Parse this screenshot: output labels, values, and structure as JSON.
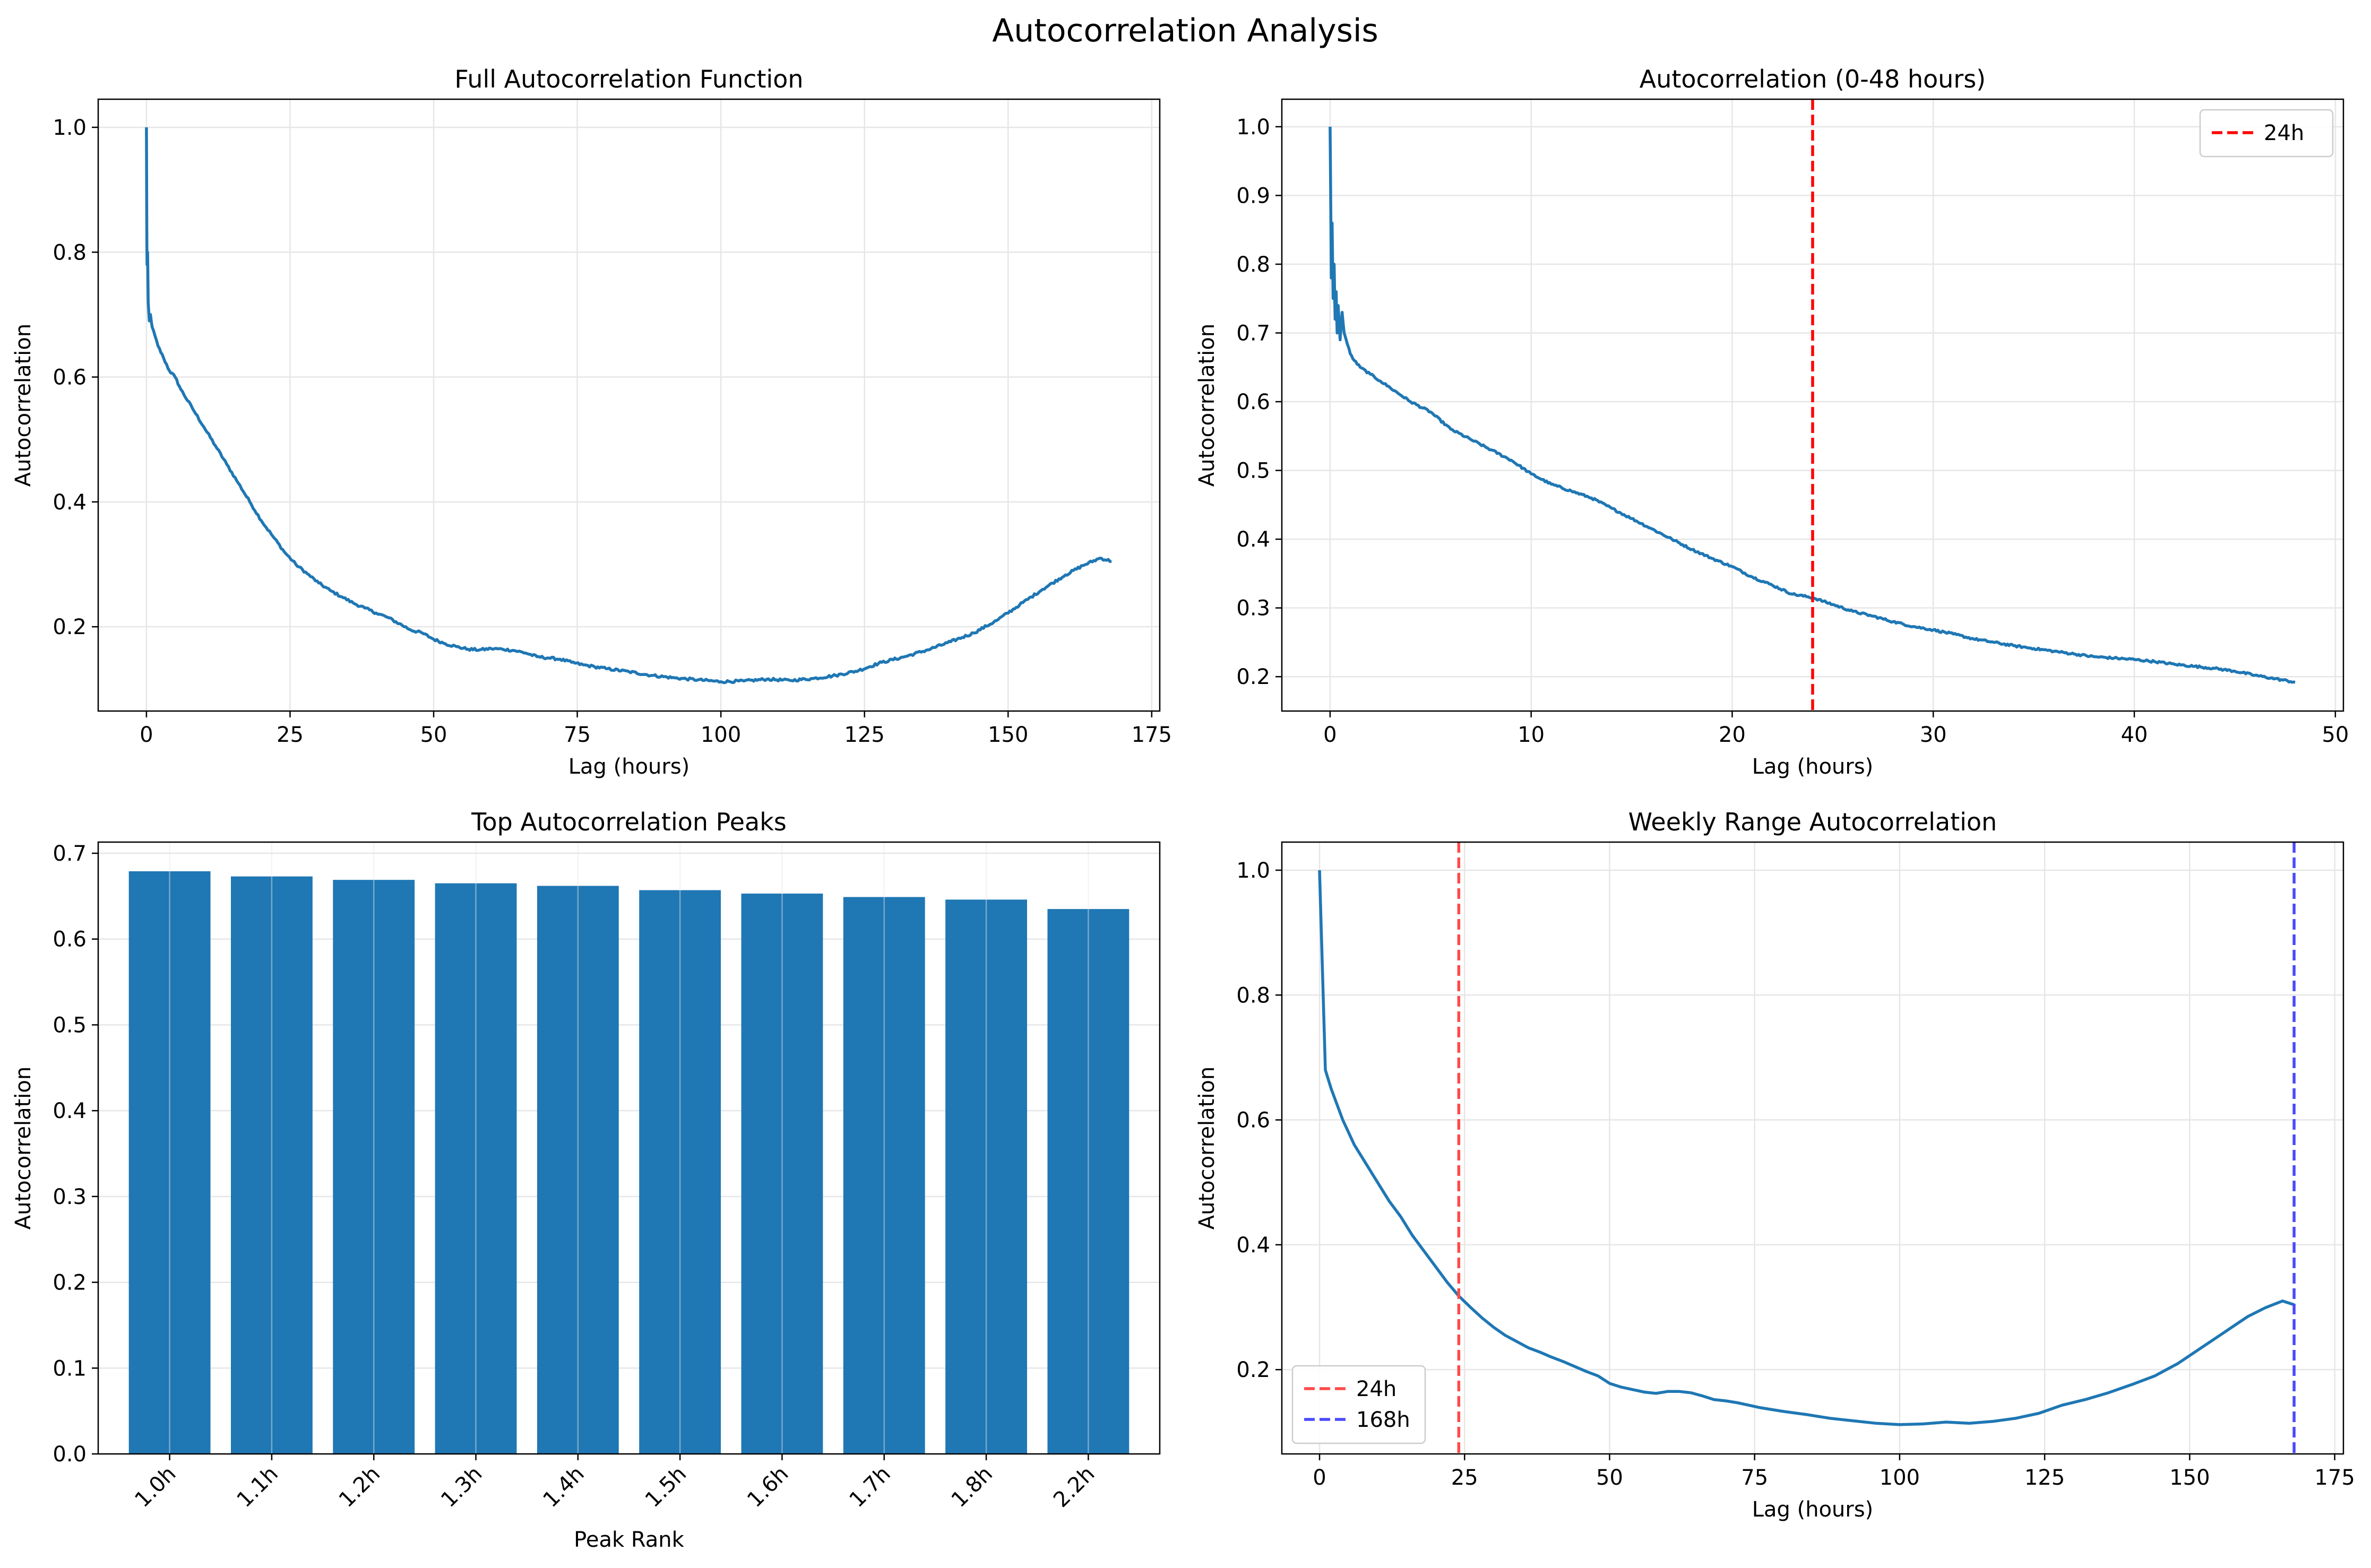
{
  "figure_title": "Autocorrelation Analysis",
  "colors": {
    "line": "#1f77b4",
    "bar": "#1f77b4",
    "marker_24h": "#ff0000",
    "marker_24h_faded": "#ff4a4a",
    "marker_168h": "#4a4aff",
    "grid": "#e6e6e6",
    "axis": "#000000"
  },
  "chart_data": [
    {
      "id": "full",
      "type": "line",
      "title": "Full Autocorrelation Function",
      "xlabel": "Lag (hours)",
      "ylabel": "Autocorrelation",
      "xlim": [
        -8.4,
        176.4
      ],
      "ylim": [
        0.065,
        1.045
      ],
      "xticks": [
        0,
        25,
        50,
        75,
        100,
        125,
        150,
        175
      ],
      "yticks": [
        0.2,
        0.4,
        0.6,
        0.8,
        1.0
      ],
      "ytick_labels": [
        "0.2",
        "0.4",
        "0.6",
        "0.8",
        "1.0"
      ],
      "grid": true,
      "noise": 0.004,
      "series": [
        {
          "x": [
            0,
            0.05,
            0.1,
            0.2,
            0.3,
            0.5,
            0.7,
            1,
            2,
            3,
            4,
            5,
            6,
            8,
            10,
            12,
            14,
            16,
            18,
            20,
            22,
            24,
            26,
            28,
            30,
            32,
            34,
            36,
            38,
            40,
            42,
            44,
            46,
            48,
            50,
            52,
            54,
            56,
            58,
            60,
            62,
            64,
            66,
            68,
            70,
            72,
            74,
            76,
            78,
            80,
            84,
            88,
            92,
            96,
            100,
            104,
            108,
            112,
            116,
            120,
            124,
            128,
            132,
            136,
            140,
            144,
            148,
            152,
            156,
            160,
            163,
            166,
            168
          ],
          "y": [
            1.0,
            0.85,
            0.78,
            0.8,
            0.72,
            0.69,
            0.7,
            0.68,
            0.65,
            0.63,
            0.61,
            0.6,
            0.58,
            0.55,
            0.52,
            0.49,
            0.46,
            0.43,
            0.4,
            0.37,
            0.345,
            0.32,
            0.3,
            0.285,
            0.27,
            0.258,
            0.248,
            0.238,
            0.23,
            0.222,
            0.215,
            0.205,
            0.195,
            0.19,
            0.18,
            0.173,
            0.168,
            0.164,
            0.163,
            0.165,
            0.164,
            0.162,
            0.158,
            0.152,
            0.15,
            0.148,
            0.143,
            0.139,
            0.136,
            0.133,
            0.128,
            0.122,
            0.118,
            0.115,
            0.112,
            0.113,
            0.116,
            0.114,
            0.117,
            0.122,
            0.13,
            0.143,
            0.152,
            0.163,
            0.176,
            0.19,
            0.21,
            0.235,
            0.26,
            0.283,
            0.298,
            0.31,
            0.305
          ]
        }
      ],
      "vlines": [],
      "legend": null
    },
    {
      "id": "short",
      "type": "line",
      "title": "Autocorrelation (0-48 hours)",
      "xlabel": "Lag (hours)",
      "ylabel": "Autocorrelation",
      "xlim": [
        -2.4,
        50.4
      ],
      "ylim": [
        0.15,
        1.04
      ],
      "xticks": [
        0,
        10,
        20,
        30,
        40,
        50
      ],
      "yticks": [
        0.2,
        0.3,
        0.4,
        0.5,
        0.6,
        0.7,
        0.8,
        0.9,
        1.0
      ],
      "ytick_labels": [
        "0.2",
        "0.3",
        "0.4",
        "0.5",
        "0.6",
        "0.7",
        "0.8",
        "0.9",
        "1.0"
      ],
      "grid": true,
      "noise": 0.003,
      "series": [
        {
          "x": [
            0,
            0.03,
            0.06,
            0.1,
            0.15,
            0.2,
            0.25,
            0.3,
            0.35,
            0.4,
            0.5,
            0.6,
            0.7,
            0.8,
            1.0,
            1.2,
            1.5,
            2,
            2.5,
            3,
            4,
            5,
            6,
            7,
            8,
            9,
            10,
            11,
            12,
            13,
            14,
            15,
            16,
            17,
            18,
            19,
            20,
            21,
            22,
            23,
            24,
            25,
            26,
            27,
            28,
            29,
            30,
            31,
            32,
            33,
            34,
            35,
            36,
            37,
            38,
            39,
            40,
            41,
            42,
            43,
            44,
            45,
            46,
            47,
            48
          ],
          "y": [
            1.0,
            0.9,
            0.78,
            0.86,
            0.75,
            0.8,
            0.72,
            0.76,
            0.7,
            0.74,
            0.69,
            0.73,
            0.7,
            0.69,
            0.67,
            0.66,
            0.65,
            0.64,
            0.63,
            0.62,
            0.6,
            0.585,
            0.56,
            0.545,
            0.53,
            0.515,
            0.495,
            0.48,
            0.47,
            0.46,
            0.445,
            0.43,
            0.415,
            0.4,
            0.385,
            0.372,
            0.36,
            0.345,
            0.333,
            0.32,
            0.315,
            0.305,
            0.295,
            0.288,
            0.28,
            0.273,
            0.268,
            0.262,
            0.255,
            0.25,
            0.245,
            0.241,
            0.237,
            0.233,
            0.229,
            0.227,
            0.225,
            0.222,
            0.218,
            0.215,
            0.212,
            0.208,
            0.202,
            0.197,
            0.192
          ]
        }
      ],
      "vlines": [
        {
          "x": 24,
          "color": "#ff0000",
          "label": "24h"
        }
      ],
      "legend": {
        "position": "upper right",
        "entries": [
          "24h"
        ]
      }
    },
    {
      "id": "peaks",
      "type": "bar",
      "title": "Top Autocorrelation Peaks",
      "xlabel": "Peak Rank",
      "ylabel": "Autocorrelation",
      "categories": [
        "1.0h",
        "1.1h",
        "1.2h",
        "1.3h",
        "1.4h",
        "1.5h",
        "1.6h",
        "1.7h",
        "1.8h",
        "2.2h"
      ],
      "values": [
        0.679,
        0.673,
        0.669,
        0.665,
        0.662,
        0.657,
        0.653,
        0.649,
        0.646,
        0.635
      ],
      "xlim": [
        -0.7,
        9.7
      ],
      "ylim": [
        0,
        0.713
      ],
      "yticks": [
        0.0,
        0.1,
        0.2,
        0.3,
        0.4,
        0.5,
        0.6,
        0.7
      ],
      "ytick_labels": [
        "0.0",
        "0.1",
        "0.2",
        "0.3",
        "0.4",
        "0.5",
        "0.6",
        "0.7"
      ],
      "xtick_rotation": -45,
      "grid": true
    },
    {
      "id": "weekly",
      "type": "line",
      "title": "Weekly Range Autocorrelation",
      "xlabel": "Lag (hours)",
      "ylabel": "Autocorrelation",
      "xlim": [
        -6.5,
        176.5
      ],
      "ylim": [
        0.065,
        1.045
      ],
      "xticks": [
        0,
        25,
        50,
        75,
        100,
        125,
        150,
        175
      ],
      "yticks": [
        0.2,
        0.4,
        0.6,
        0.8,
        1.0
      ],
      "ytick_labels": [
        "0.2",
        "0.4",
        "0.6",
        "0.8",
        "1.0"
      ],
      "grid": true,
      "noise": 0,
      "series": [
        {
          "x": [
            0,
            1,
            2,
            3,
            4,
            5,
            6,
            8,
            10,
            12,
            14,
            16,
            18,
            20,
            22,
            24,
            26,
            28,
            30,
            32,
            34,
            36,
            38,
            40,
            42,
            44,
            46,
            48,
            50,
            52,
            54,
            56,
            58,
            60,
            62,
            64,
            66,
            68,
            70,
            72,
            74,
            76,
            78,
            80,
            84,
            88,
            92,
            96,
            100,
            104,
            108,
            112,
            116,
            120,
            124,
            128,
            132,
            136,
            140,
            144,
            148,
            152,
            156,
            160,
            163,
            166,
            168
          ],
          "y": [
            1.0,
            0.68,
            0.65,
            0.625,
            0.6,
            0.58,
            0.56,
            0.53,
            0.5,
            0.47,
            0.445,
            0.415,
            0.39,
            0.365,
            0.34,
            0.318,
            0.3,
            0.283,
            0.268,
            0.255,
            0.245,
            0.235,
            0.228,
            0.22,
            0.213,
            0.205,
            0.197,
            0.19,
            0.178,
            0.172,
            0.168,
            0.164,
            0.162,
            0.165,
            0.165,
            0.163,
            0.158,
            0.152,
            0.15,
            0.147,
            0.143,
            0.139,
            0.136,
            0.133,
            0.128,
            0.122,
            0.118,
            0.114,
            0.112,
            0.113,
            0.116,
            0.114,
            0.117,
            0.122,
            0.13,
            0.143,
            0.152,
            0.163,
            0.176,
            0.19,
            0.21,
            0.235,
            0.26,
            0.285,
            0.299,
            0.31,
            0.304
          ]
        }
      ],
      "vlines": [
        {
          "x": 24,
          "color": "#ff4a4a",
          "label": "24h"
        },
        {
          "x": 168,
          "color": "#4a4aff",
          "label": "168h"
        }
      ],
      "legend": {
        "position": "lower left",
        "entries": [
          "24h",
          "168h"
        ]
      }
    }
  ]
}
